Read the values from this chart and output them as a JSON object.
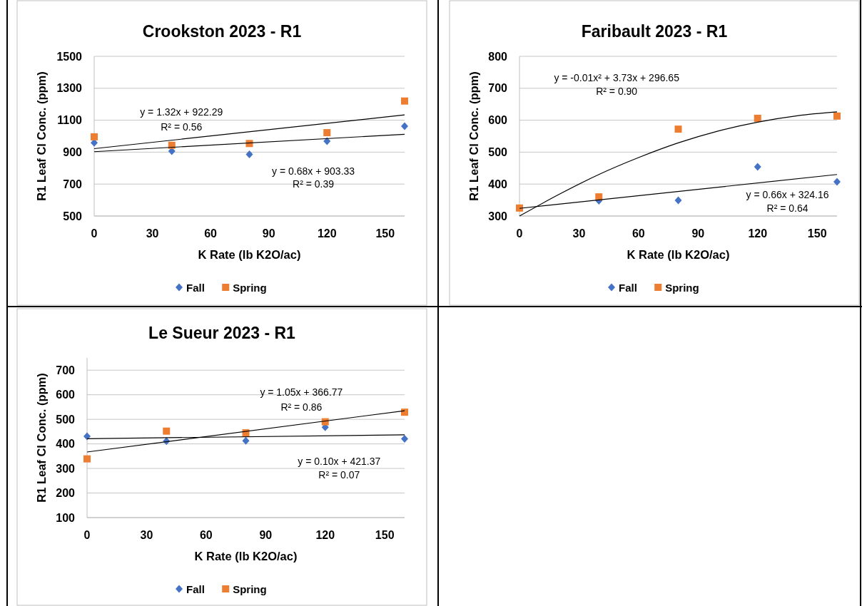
{
  "chart_data": [
    {
      "type": "scatter",
      "title": "Crookston 2023 - R1",
      "xlabel": "K Rate (lb K2O/ac)",
      "ylabel": "R1 Leaf Cl Conc. (ppm)",
      "x": [
        0,
        40,
        80,
        120,
        160
      ],
      "series": [
        {
          "name": "Fall",
          "color": "#4472c4",
          "marker": "diamond",
          "values": [
            959,
            906,
            886,
            969,
            1062
          ]
        },
        {
          "name": "Spring",
          "color": "#ed7d31",
          "marker": "square",
          "values": [
            996,
            943,
            954,
            1022,
            1220
          ]
        },
        {
          "type": "line",
          "color": "#000000",
          "x": [
            0,
            160
          ],
          "values": [
            922,
            1133
          ]
        },
        {
          "type": "line",
          "color": "#000000",
          "x": [
            0,
            160
          ],
          "values": [
            903,
            1012
          ]
        }
      ],
      "xlim": [
        0,
        160
      ],
      "xticks": [
        0,
        30,
        60,
        90,
        120,
        150
      ],
      "ylim": [
        500,
        1500
      ],
      "yticks": [
        500,
        700,
        900,
        1100,
        1300,
        1500
      ],
      "grid": "y",
      "legend": "bottom",
      "annotations": [
        "y = 1.32x + 922.29",
        "R² = 0.56",
        "y = 0.68x + 903.33",
        "R² = 0.39"
      ]
    },
    {
      "type": "scatter",
      "title": "Faribault 2023 - R1",
      "xlabel": "K Rate (lb K2O/ac)",
      "ylabel": "R1 Leaf Cl Conc. (ppm)",
      "x": [
        0,
        40,
        80,
        120,
        160
      ],
      "series": [
        {
          "name": "Fall",
          "color": "#4472c4",
          "marker": "diamond",
          "values": [
            null,
            348,
            349,
            454,
            407
          ]
        },
        {
          "name": "Spring",
          "color": "#ed7d31",
          "marker": "square",
          "values": [
            325,
            360,
            572,
            606,
            613
          ]
        },
        {
          "type": "line",
          "color": "#000000",
          "x": [
            0,
            20,
            40,
            60,
            80,
            100,
            120,
            140,
            160
          ],
          "values": [
            300,
            368,
            430,
            483,
            529,
            566,
            594,
            614,
            626
          ]
        },
        {
          "type": "line",
          "color": "#000000",
          "x": [
            0,
            160
          ],
          "values": [
            324,
            430
          ]
        }
      ],
      "xlim": [
        0,
        160
      ],
      "xticks": [
        0,
        30,
        60,
        90,
        120,
        150
      ],
      "ylim": [
        300,
        800
      ],
      "yticks": [
        300,
        400,
        500,
        600,
        700,
        800
      ],
      "grid": "y",
      "legend": "bottom",
      "annotations": [
        "y = -0.01x² + 3.73x + 296.65",
        "R² = 0.90",
        "y = 0.66x + 324.16",
        "R² = 0.64"
      ]
    },
    {
      "type": "scatter",
      "title": "Le Sueur 2023 - R1",
      "xlabel": "K Rate (lb K2O/ac)",
      "ylabel": "R1 Leaf Cl Conc. (ppm)",
      "x": [
        0,
        40,
        80,
        120,
        160
      ],
      "series": [
        {
          "name": "Fall",
          "color": "#4472c4",
          "marker": "diamond",
          "values": [
            431,
            411,
            413,
            468,
            421
          ]
        },
        {
          "name": "Spring",
          "color": "#ed7d31",
          "marker": "square",
          "values": [
            339,
            452,
            445,
            490,
            529
          ]
        },
        {
          "type": "line",
          "color": "#000000",
          "x": [
            0,
            160
          ],
          "values": [
            367,
            535
          ]
        },
        {
          "type": "line",
          "color": "#000000",
          "x": [
            0,
            160
          ],
          "values": [
            421,
            437
          ]
        }
      ],
      "xlim": [
        0,
        160
      ],
      "xticks": [
        0,
        30,
        60,
        90,
        120,
        150
      ],
      "ylim": [
        100,
        750
      ],
      "yticks": [
        100,
        200,
        300,
        400,
        500,
        600,
        700
      ],
      "grid": "y",
      "legend": "bottom",
      "annotations": [
        "y = 1.05x + 366.77",
        "R² = 0.86",
        "y = 0.10x + 421.37",
        "R² = 0.07"
      ]
    }
  ]
}
